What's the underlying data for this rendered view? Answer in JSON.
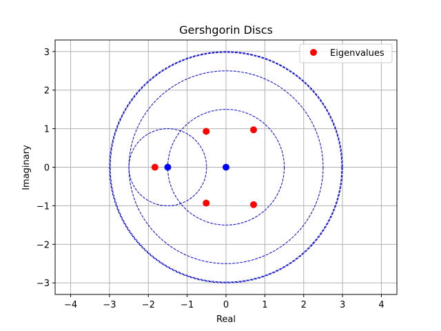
{
  "chart_data": {
    "type": "scatter",
    "title": "Gershgorin Discs",
    "xlabel": "Real",
    "ylabel": "Imaginary",
    "xlim": [
      -4.4,
      4.4
    ],
    "ylim": [
      -3.3,
      3.3
    ],
    "xticks": [
      -4,
      -3,
      -2,
      -1,
      0,
      1,
      2,
      3,
      4
    ],
    "yticks": [
      -3,
      -2,
      -1,
      0,
      1,
      2,
      3
    ],
    "xtick_labels": [
      "−4",
      "−3",
      "−2",
      "−1",
      "0",
      "1",
      "2",
      "3",
      "4"
    ],
    "ytick_labels": [
      "−3",
      "−2",
      "−1",
      "0",
      "1",
      "2",
      "3"
    ],
    "grid": true,
    "legend_position": "top-right",
    "discs": [
      {
        "center": [
          0,
          0
        ],
        "radius": 3.0
      },
      {
        "center": [
          0,
          0
        ],
        "radius": 2.98
      },
      {
        "center": [
          0,
          0
        ],
        "radius": 2.5
      },
      {
        "center": [
          0,
          0
        ],
        "radius": 1.5
      },
      {
        "center": [
          -1.5,
          0
        ],
        "radius": 1.0
      }
    ],
    "disc_centers": [
      {
        "x": -1.5,
        "y": 0
      },
      {
        "x": 0,
        "y": 0
      }
    ],
    "series": [
      {
        "name": "Eigenvalues",
        "points": [
          {
            "x": -1.83,
            "y": 0.0
          },
          {
            "x": -0.51,
            "y": 0.93
          },
          {
            "x": -0.51,
            "y": -0.93
          },
          {
            "x": 0.71,
            "y": 0.97
          },
          {
            "x": 0.71,
            "y": -0.97
          }
        ]
      }
    ],
    "colors": {
      "eigenvalue": "#ff0000",
      "disc_center": "#0000ff",
      "disc_edge": "#0000cd",
      "grid": "#b0b0b0",
      "axes": "#000000"
    }
  }
}
